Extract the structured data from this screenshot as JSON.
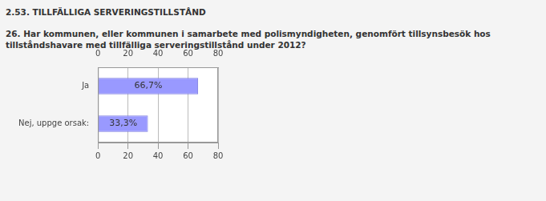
{
  "chart_data": {
    "type": "bar",
    "orientation": "horizontal",
    "title": "2.53. TILLFÄLLIGA SERVERINGSTILLSTÅND",
    "subtitle": "26. Har kommunen, eller kommunen i samarbete med polismyndigheten, genomfört tillsynsbesök hos tillståndshavare med tillfälliga serveringstillstånd under 2012?",
    "categories": [
      "Ja",
      "Nej, uppge orsak:"
    ],
    "values": [
      66.7,
      33.3
    ],
    "value_labels": [
      "66,7%",
      "33,3%"
    ],
    "data_labels": true,
    "color": "#9999ff",
    "xlim": [
      0,
      80
    ],
    "xticks": [
      0,
      20,
      40,
      60,
      80
    ],
    "grid": true
  }
}
